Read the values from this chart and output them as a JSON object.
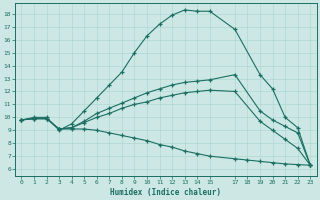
{
  "xlabel": "Humidex (Indice chaleur)",
  "xlim": [
    -0.5,
    23.5
  ],
  "ylim": [
    5.5,
    18.8
  ],
  "xticks": [
    0,
    1,
    2,
    3,
    4,
    5,
    6,
    7,
    8,
    9,
    10,
    11,
    12,
    13,
    14,
    15,
    17,
    18,
    19,
    20,
    21,
    22,
    23
  ],
  "xtick_labels": [
    "0",
    "1",
    "2",
    "3",
    "4",
    "5",
    "6",
    "7",
    "8",
    "9",
    "10",
    "11",
    "12",
    "13",
    "14",
    "15",
    "17",
    "18",
    "19",
    "20",
    "21",
    "22",
    "23"
  ],
  "yticks": [
    6,
    7,
    8,
    9,
    10,
    11,
    12,
    13,
    14,
    15,
    16,
    17,
    18
  ],
  "bg_color": "#cde8e4",
  "line_color": "#1a6e63",
  "grid_color": "#b0d8d2",
  "lines": [
    {
      "x": [
        0,
        1,
        2,
        3,
        4,
        5,
        6,
        7,
        8,
        9,
        10,
        11,
        12,
        13,
        14,
        15,
        17,
        19,
        20,
        21,
        22,
        23
      ],
      "y": [
        9.8,
        10.0,
        10.0,
        9.0,
        9.5,
        10.5,
        11.5,
        12.5,
        13.5,
        15.0,
        16.3,
        17.2,
        17.9,
        18.3,
        18.2,
        18.2,
        16.8,
        13.3,
        12.2,
        10.0,
        9.2,
        6.3
      ],
      "marker": true
    },
    {
      "x": [
        0,
        1,
        2,
        3,
        4,
        5,
        6,
        7,
        8,
        9,
        10,
        11,
        12,
        13,
        14,
        15,
        17,
        19,
        20,
        21,
        22,
        23
      ],
      "y": [
        9.8,
        9.9,
        9.9,
        9.1,
        9.2,
        9.7,
        10.3,
        10.7,
        11.1,
        11.5,
        11.9,
        12.2,
        12.5,
        12.7,
        12.8,
        12.9,
        13.3,
        10.5,
        9.8,
        9.3,
        8.8,
        6.3
      ],
      "marker": true
    },
    {
      "x": [
        0,
        1,
        2,
        3,
        4,
        5,
        6,
        7,
        8,
        9,
        10,
        11,
        12,
        13,
        14,
        15,
        17,
        19,
        20,
        21,
        22,
        23
      ],
      "y": [
        9.8,
        9.9,
        9.9,
        9.1,
        9.2,
        9.6,
        10.0,
        10.3,
        10.7,
        11.0,
        11.2,
        11.5,
        11.7,
        11.9,
        12.0,
        12.1,
        12.0,
        9.7,
        9.0,
        8.3,
        7.6,
        6.3
      ],
      "marker": true
    },
    {
      "x": [
        0,
        1,
        2,
        3,
        4,
        5,
        6,
        7,
        8,
        9,
        10,
        11,
        12,
        13,
        14,
        15,
        17,
        18,
        19,
        20,
        21,
        22,
        23
      ],
      "y": [
        9.8,
        9.9,
        9.9,
        9.1,
        9.1,
        9.1,
        9.0,
        8.8,
        8.6,
        8.4,
        8.2,
        7.9,
        7.7,
        7.4,
        7.2,
        7.0,
        6.8,
        6.7,
        6.6,
        6.5,
        6.4,
        6.35,
        6.3
      ],
      "marker": true
    }
  ]
}
